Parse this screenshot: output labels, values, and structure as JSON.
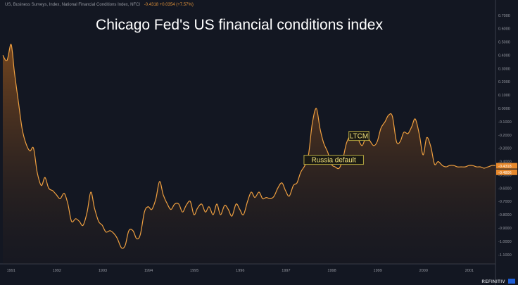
{
  "header": {
    "series_label": "US, Business Surveys, Index, National Financial Conditions Index, NFCI",
    "value_text": "-0.4318 +0.0354 (+7.57%)"
  },
  "brand": {
    "name": "REFINITIV"
  },
  "chart_data": {
    "type": "area",
    "title": "Chicago Fed's US financial conditions index",
    "xlabel": "",
    "ylabel": "",
    "xlim": [
      1990.83,
      2001.58
    ],
    "ylim": [
      -1.17,
      0.72
    ],
    "x_ticks": [
      1991,
      1992,
      1993,
      1994,
      1995,
      1996,
      1997,
      1998,
      1999,
      2000,
      2001
    ],
    "x_tick_labels": [
      "1991",
      "1992",
      "1993",
      "1994",
      "1995",
      "1996",
      "1997",
      "1998",
      "1999",
      "2000",
      "2001"
    ],
    "y_ticks": [
      0.7,
      0.6,
      0.5,
      0.4,
      0.3,
      0.2,
      0.1,
      0.0,
      -0.1,
      -0.2,
      -0.3,
      -0.4,
      -0.5,
      -0.6,
      -0.7,
      -0.8,
      -0.9,
      -1.0,
      -1.1
    ],
    "y_tick_labels": [
      "0.7000",
      "0.6000",
      "0.5000",
      "0.4000",
      "0.3000",
      "0.2000",
      "0.1000",
      "0.0000",
      "-0.1000",
      "-0.2000",
      "-0.3000",
      "-0.4000",
      "-0.5000",
      "-0.6000",
      "-0.7000",
      "-0.8000",
      "-0.9000",
      "-1.0000",
      "-1.1000"
    ],
    "series": [
      {
        "name": "National Financial Conditions Index, NFCI",
        "color": "#f0a040",
        "x": [
          1990.83,
          1990.92,
          1991.0,
          1991.04,
          1991.08,
          1991.17,
          1991.25,
          1991.33,
          1991.42,
          1991.5,
          1991.58,
          1991.67,
          1991.75,
          1991.83,
          1991.92,
          1992.0,
          1992.08,
          1992.17,
          1992.25,
          1992.33,
          1992.42,
          1992.5,
          1992.58,
          1992.67,
          1992.75,
          1992.83,
          1992.92,
          1993.0,
          1993.08,
          1993.17,
          1993.25,
          1993.33,
          1993.42,
          1993.5,
          1993.58,
          1993.67,
          1993.75,
          1993.83,
          1993.92,
          1994.0,
          1994.08,
          1994.17,
          1994.25,
          1994.33,
          1994.42,
          1994.5,
          1994.58,
          1994.67,
          1994.75,
          1994.83,
          1994.92,
          1995.0,
          1995.08,
          1995.17,
          1995.25,
          1995.33,
          1995.42,
          1995.5,
          1995.58,
          1995.67,
          1995.75,
          1995.83,
          1995.92,
          1996.0,
          1996.08,
          1996.17,
          1996.25,
          1996.33,
          1996.42,
          1996.5,
          1996.58,
          1996.67,
          1996.75,
          1996.83,
          1996.92,
          1997.0,
          1997.08,
          1997.17,
          1997.25,
          1997.33,
          1997.42,
          1997.5,
          1997.58,
          1997.67,
          1997.75,
          1997.83,
          1997.92,
          1998.0,
          1998.08,
          1998.17,
          1998.25,
          1998.33,
          1998.42,
          1998.5,
          1998.58,
          1998.67,
          1998.75,
          1998.83,
          1998.92,
          1999.0,
          1999.08,
          1999.17,
          1999.25,
          1999.33,
          1999.42,
          1999.5,
          1999.58,
          1999.67,
          1999.75,
          1999.83,
          1999.92,
          2000.0,
          2000.08,
          2000.17,
          2000.25,
          2000.33,
          2000.42,
          2000.5,
          2000.58,
          2000.67,
          2000.75,
          2000.83,
          2000.92,
          2001.0,
          2001.08,
          2001.17,
          2001.25,
          2001.33,
          2001.42,
          2001.5,
          2001.58
        ],
        "y": [
          0.4,
          0.36,
          0.48,
          0.42,
          0.28,
          0.05,
          -0.15,
          -0.26,
          -0.32,
          -0.3,
          -0.48,
          -0.58,
          -0.52,
          -0.6,
          -0.62,
          -0.65,
          -0.68,
          -0.64,
          -0.72,
          -0.85,
          -0.83,
          -0.85,
          -0.88,
          -0.78,
          -0.63,
          -0.75,
          -0.85,
          -0.88,
          -0.93,
          -0.92,
          -0.94,
          -0.98,
          -1.05,
          -1.03,
          -0.92,
          -0.92,
          -0.98,
          -0.95,
          -0.78,
          -0.74,
          -0.76,
          -0.68,
          -0.55,
          -0.65,
          -0.72,
          -0.76,
          -0.72,
          -0.72,
          -0.78,
          -0.73,
          -0.7,
          -0.8,
          -0.75,
          -0.72,
          -0.78,
          -0.74,
          -0.8,
          -0.72,
          -0.8,
          -0.73,
          -0.76,
          -0.81,
          -0.72,
          -0.76,
          -0.8,
          -0.7,
          -0.63,
          -0.67,
          -0.63,
          -0.68,
          -0.67,
          -0.68,
          -0.66,
          -0.6,
          -0.56,
          -0.62,
          -0.66,
          -0.58,
          -0.56,
          -0.48,
          -0.43,
          -0.35,
          -0.12,
          0.0,
          -0.15,
          -0.26,
          -0.33,
          -0.42,
          -0.44,
          -0.45,
          -0.38,
          -0.26,
          -0.2,
          -0.18,
          -0.23,
          -0.28,
          -0.22,
          -0.24,
          -0.28,
          -0.25,
          -0.15,
          -0.1,
          -0.05,
          -0.06,
          -0.25,
          -0.25,
          -0.18,
          -0.19,
          -0.14,
          -0.08,
          -0.2,
          -0.35,
          -0.22,
          -0.29,
          -0.42,
          -0.4,
          -0.43,
          -0.44,
          -0.43,
          -0.43,
          -0.44,
          -0.44,
          -0.44,
          -0.43,
          -0.43,
          -0.44,
          -0.44,
          -0.45,
          -0.44,
          -0.43,
          -0.43
        ]
      }
    ],
    "annotations": [
      {
        "text": "LTCM",
        "x": 1998.6,
        "y": -0.21
      },
      {
        "text": "Russia default",
        "x": 1998.05,
        "y": -0.39
      }
    ],
    "price_labels": [
      {
        "text": "-0.4318",
        "value": -0.4318
      },
      {
        "text": "-0.4806",
        "value": -0.4806
      }
    ],
    "grid": false,
    "legend": "none"
  }
}
